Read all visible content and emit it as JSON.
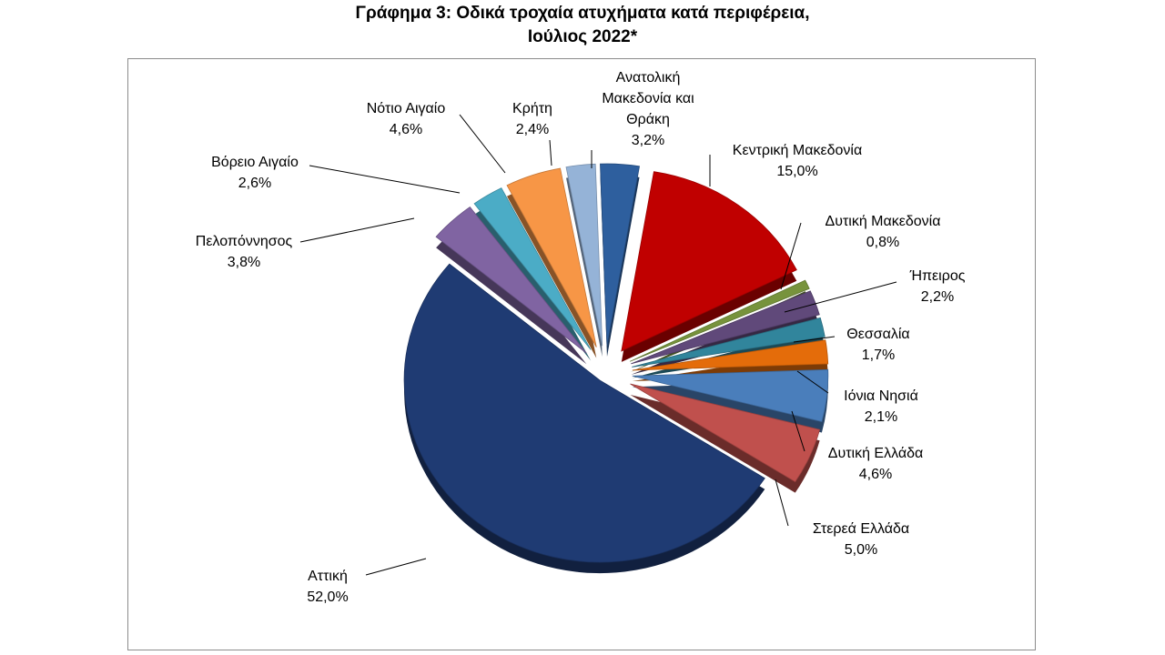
{
  "title_line1": "Γράφημα 3: Οδικά τροχαία ατυχήματα κατά περιφέρεια,",
  "title_line2": "Ιούλιος 2022*",
  "chart_data": {
    "type": "pie",
    "title": "Γράφημα 3: Οδικά τροχαία ατυχήματα κατά περιφέρεια, Ιούλιος 2022*",
    "unit": "%",
    "legend": "none",
    "slices": [
      {
        "name": "Ανατολική Μακεδονία και Θράκη",
        "value": 3.2,
        "label": "3,2%",
        "color": "#2e5f9e"
      },
      {
        "name": "Κεντρική Μακεδονία",
        "value": 15.0,
        "label": "15,0%",
        "color": "#c00000"
      },
      {
        "name": "Δυτική Μακεδονία",
        "value": 0.8,
        "label": "0,8%",
        "color": "#77933c"
      },
      {
        "name": "Ήπειρος",
        "value": 2.2,
        "label": "2,2%",
        "color": "#60497a"
      },
      {
        "name": "Θεσσαλία",
        "value": 1.7,
        "label": "1,7%",
        "color": "#31859c"
      },
      {
        "name": "Ιόνια Νησιά",
        "value": 2.1,
        "label": "2,1%",
        "color": "#e46c0a"
      },
      {
        "name": "Δυτική Ελλάδα",
        "value": 4.6,
        "label": "4,6%",
        "color": "#4a7ebb"
      },
      {
        "name": "Στερεά Ελλάδα",
        "value": 5.0,
        "label": "5,0%",
        "color": "#c0504d"
      },
      {
        "name": "Αττική",
        "value": 52.0,
        "label": "52,0%",
        "color": "#1f3b73"
      },
      {
        "name": "Πελοπόννησος",
        "value": 3.8,
        "label": "3,8%",
        "color": "#8064a2"
      },
      {
        "name": "Βόρειο Αιγαίο",
        "value": 2.6,
        "label": "2,6%",
        "color": "#4bacc6"
      },
      {
        "name": "Νότιο Αιγαίο",
        "value": 4.6,
        "label": "4,6%",
        "color": "#f79646"
      },
      {
        "name": "Κρήτη",
        "value": 2.4,
        "label": "2,4%",
        "color": "#95b3d7"
      }
    ]
  }
}
